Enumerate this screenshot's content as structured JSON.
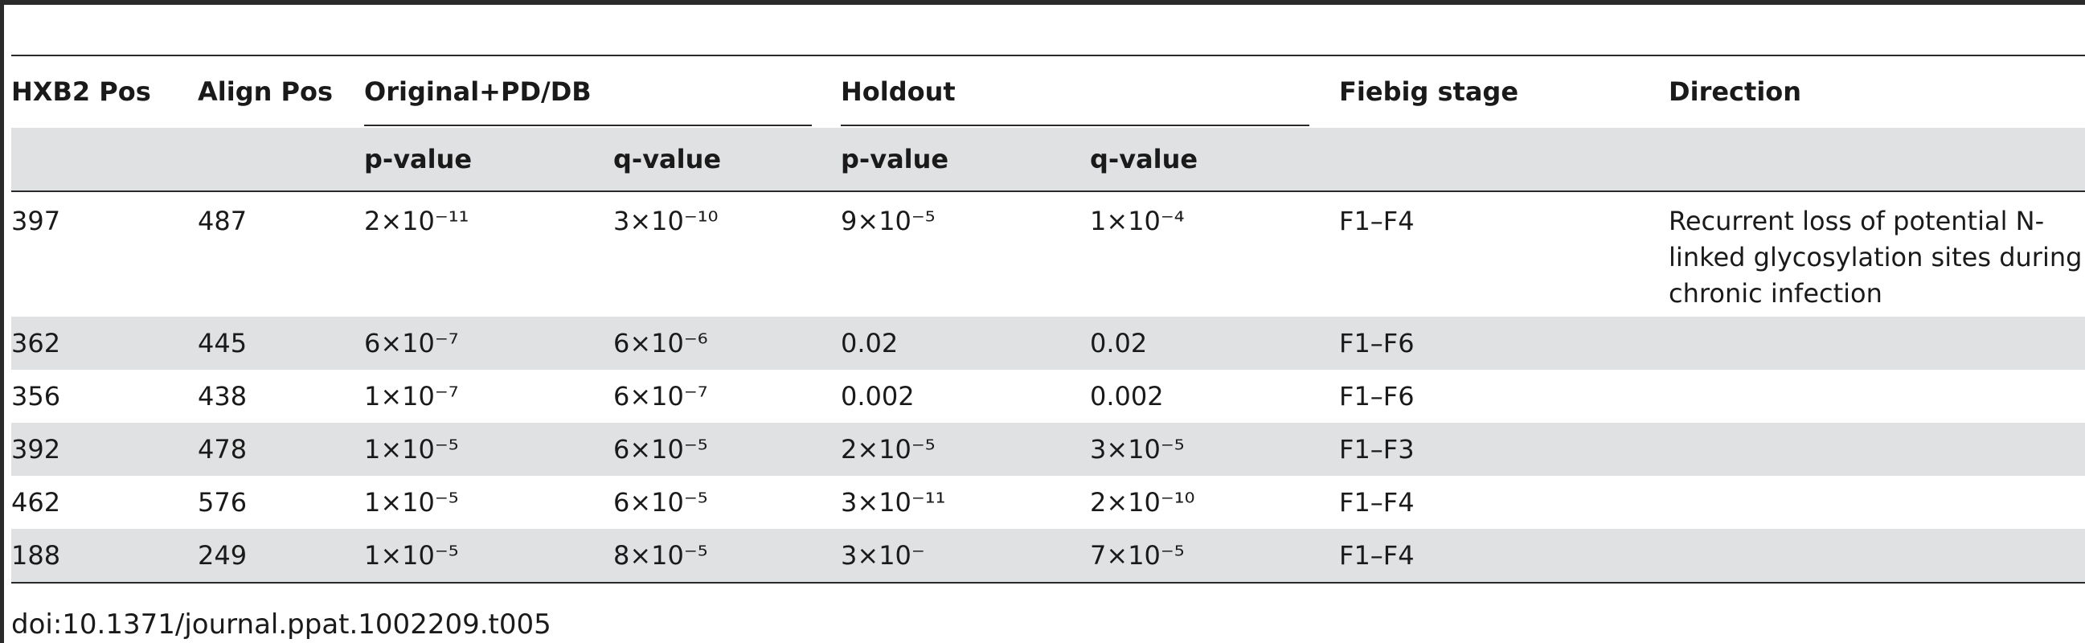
{
  "table": {
    "headers": {
      "hxb2_pos": "HXB2 Pos",
      "align_pos": "Align Pos",
      "group_original": "Original+PD/DB",
      "group_holdout": "Holdout",
      "fiebig_stage": "Fiebig stage",
      "direction": "Direction",
      "p_value_1": "p-value",
      "q_value_1": "q-value",
      "p_value_2": "p-value",
      "q_value_2": "q-value"
    },
    "rows": [
      {
        "hxb2": "397",
        "align": "487",
        "orig_p": "2×10⁻¹¹",
        "orig_q": "3×10⁻¹⁰",
        "hold_p": "9×10⁻⁵",
        "hold_q": "1×10⁻⁴",
        "fiebig": "F1–F4",
        "direction": "Recurrent loss of potential N-linked glycosylation sites during chronic infection"
      },
      {
        "hxb2": "362",
        "align": "445",
        "orig_p": "6×10⁻⁷",
        "orig_q": "6×10⁻⁶",
        "hold_p": "0.02",
        "hold_q": "0.02",
        "fiebig": "F1–F6",
        "direction": ""
      },
      {
        "hxb2": "356",
        "align": "438",
        "orig_p": "1×10⁻⁷",
        "orig_q": "6×10⁻⁷",
        "hold_p": "0.002",
        "hold_q": "0.002",
        "fiebig": "F1–F6",
        "direction": ""
      },
      {
        "hxb2": "392",
        "align": "478",
        "orig_p": "1×10⁻⁵",
        "orig_q": "6×10⁻⁵",
        "hold_p": "2×10⁻⁵",
        "hold_q": "3×10⁻⁵",
        "fiebig": "F1–F3",
        "direction": ""
      },
      {
        "hxb2": "462",
        "align": "576",
        "orig_p": "1×10⁻⁵",
        "orig_q": "6×10⁻⁵",
        "hold_p": "3×10⁻¹¹",
        "hold_q": "2×10⁻¹⁰",
        "fiebig": "F1–F4",
        "direction": ""
      },
      {
        "hxb2": "188",
        "align": "249",
        "orig_p": "1×10⁻⁵",
        "orig_q": "8×10⁻⁵",
        "hold_p": "3×10⁻",
        "hold_q": "7×10⁻⁵",
        "fiebig": "F1–F4",
        "direction": ""
      }
    ]
  },
  "doi": "doi:10.1371/journal.ppat.1002209.t005"
}
